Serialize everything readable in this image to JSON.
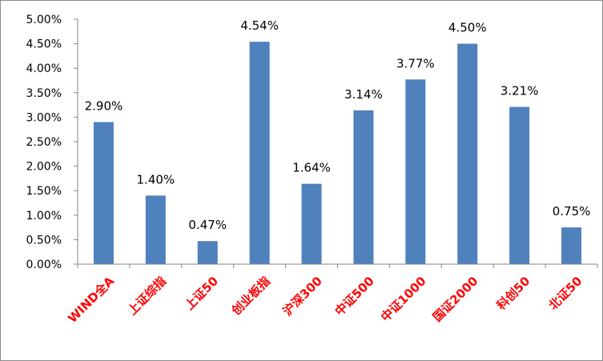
{
  "chart_data": {
    "type": "bar",
    "title": "",
    "xlabel": "",
    "ylabel": "",
    "categories": [
      "WIND全A",
      "上证综指",
      "上证50",
      "创业板指",
      "沪深300",
      "中证500",
      "中证1000",
      "国证2000",
      "科创50",
      "北证50"
    ],
    "values": [
      2.9,
      1.4,
      0.47,
      4.54,
      1.64,
      3.14,
      3.77,
      4.5,
      3.21,
      0.75
    ],
    "data_labels": [
      "2.90%",
      "1.40%",
      "0.47%",
      "4.54%",
      "1.64%",
      "3.14%",
      "3.77%",
      "4.50%",
      "3.21%",
      "0.75%"
    ],
    "ylim": [
      0,
      5
    ],
    "yticks": [
      0,
      0.5,
      1,
      1.5,
      2,
      2.5,
      3,
      3.5,
      4,
      4.5,
      5
    ],
    "ytick_labels": [
      "0.00%",
      "0.50%",
      "1.00%",
      "1.50%",
      "2.00%",
      "2.50%",
      "3.00%",
      "3.50%",
      "4.00%",
      "4.50%",
      "5.00%"
    ],
    "grid": false,
    "legend": "none",
    "colors": {
      "bar": "#4f81bd",
      "category_label": "#ff0000",
      "axis": "#868686"
    }
  }
}
